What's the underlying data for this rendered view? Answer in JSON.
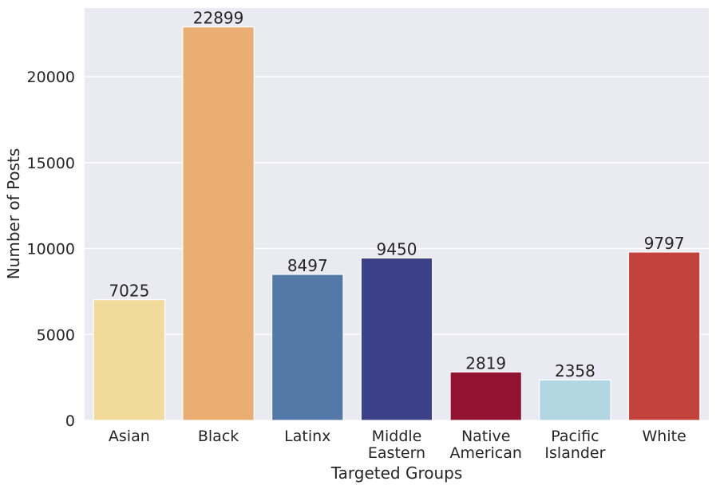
{
  "chart_data": {
    "type": "bar",
    "categories": [
      [
        "Asian"
      ],
      [
        "Black"
      ],
      [
        "Latinx"
      ],
      [
        "Middle",
        "Eastern"
      ],
      [
        "Native",
        "American"
      ],
      [
        "Pacific",
        "Islander"
      ],
      [
        "White"
      ]
    ],
    "values": [
      7025,
      22899,
      8497,
      9450,
      2819,
      2358,
      9797
    ],
    "value_labels": [
      "7025",
      "22899",
      "8497",
      "9450",
      "2819",
      "2358",
      "9797"
    ],
    "colors": [
      "#F2DB9A",
      "#EAAE73",
      "#5279A8",
      "#3C4089",
      "#921331",
      "#B2D7E3",
      "#C3423D"
    ],
    "title": "",
    "xlabel": "Targeted Groups",
    "ylabel": "Number of Posts",
    "ylim": [
      0,
      24000
    ],
    "yticks": [
      0,
      5000,
      10000,
      15000,
      20000
    ],
    "grid": true,
    "background": "#EAEAF2"
  }
}
